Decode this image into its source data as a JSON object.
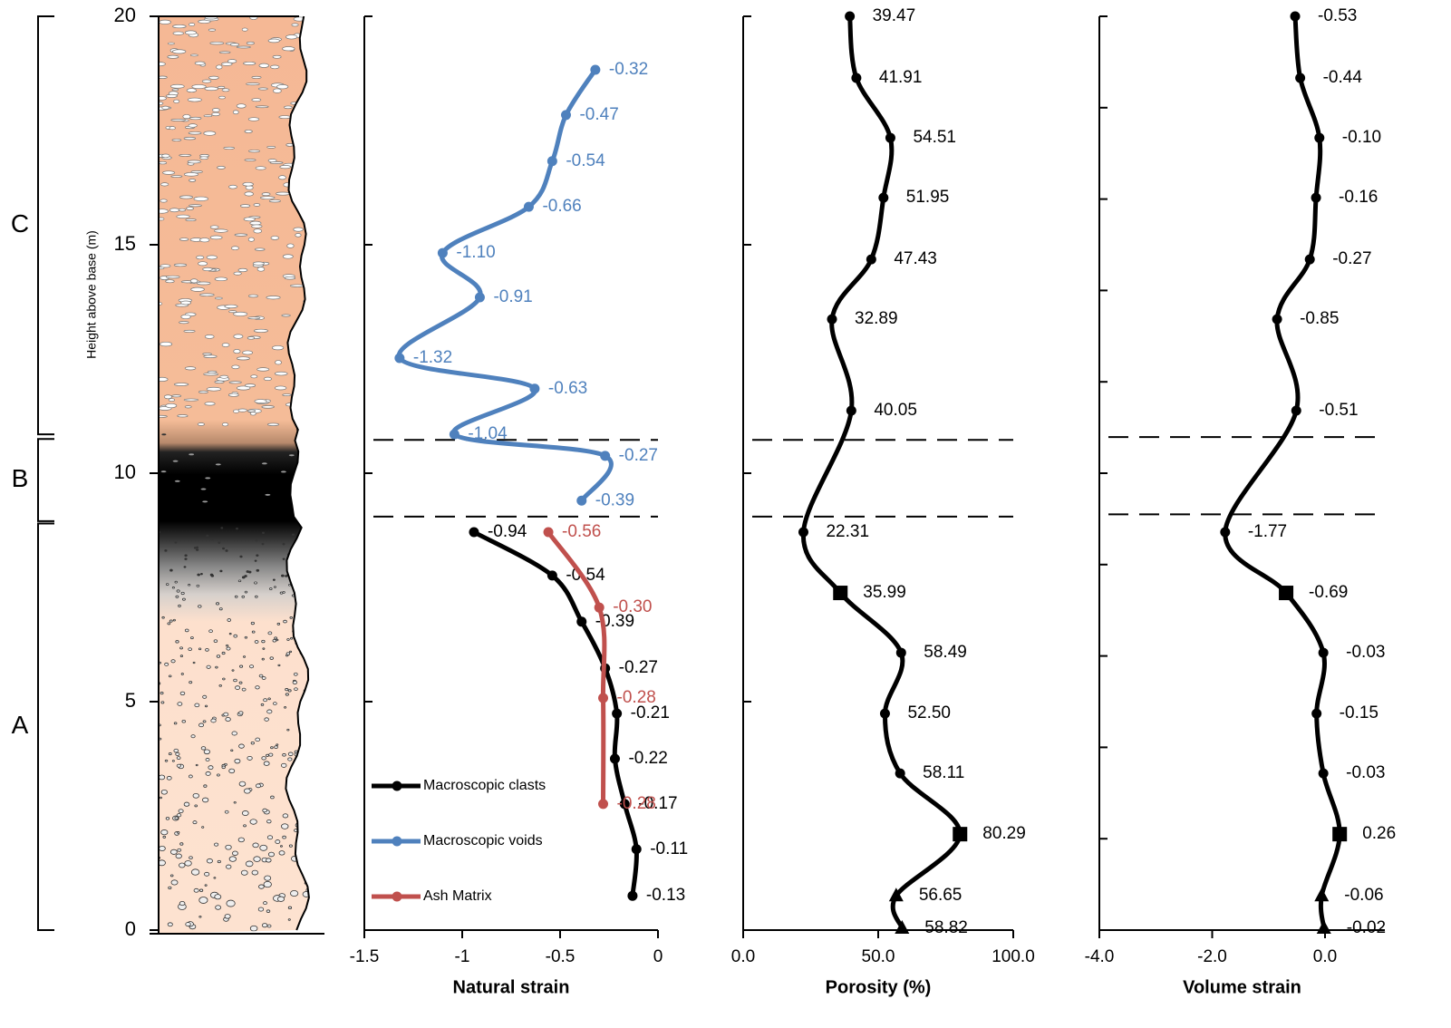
{
  "chart_data": [
    {
      "type": "column",
      "ylabel": "Height above base (m)",
      "ylim": [
        0,
        20
      ],
      "yticks": [
        0,
        5,
        10,
        15,
        20
      ],
      "units": [
        {
          "label": "A",
          "range": [
            0,
            8.9
          ]
        },
        {
          "label": "B",
          "range": [
            8.95,
            10.75
          ]
        },
        {
          "label": "C",
          "range": [
            10.85,
            20
          ]
        }
      ]
    },
    {
      "type": "line",
      "xlabel": "Natural strain",
      "xlim": [
        -1.5,
        0
      ],
      "xticks": [
        -1.5,
        -1,
        -0.5,
        0
      ],
      "ylim": [
        0,
        20
      ],
      "yticks": [
        0,
        5,
        10,
        15,
        20
      ],
      "boundaries": [
        9.05,
        10.73
      ],
      "legend": "lower left",
      "series": [
        {
          "name": "Macroscopic clasts",
          "color": "#000000",
          "y": [
            8.71,
            7.76,
            6.75,
            5.73,
            4.74,
            3.75,
            2.76,
            1.77,
            0.75
          ],
          "values": [
            -0.94,
            -0.54,
            -0.39,
            -0.27,
            -0.21,
            -0.22,
            -0.17,
            -0.11,
            -0.13
          ],
          "value_labels": [
            "-0.94",
            "-0.54",
            "-0.39",
            "-0.27",
            "-0.21",
            "-0.22",
            "-0.17",
            "-0.11",
            "-0.13"
          ]
        },
        {
          "name": "Macroscopic voids",
          "color": "#4f81bd",
          "y": [
            18.83,
            17.84,
            16.83,
            15.83,
            14.82,
            13.85,
            12.52,
            11.85,
            10.85,
            10.38,
            9.4
          ],
          "values": [
            -0.32,
            -0.47,
            -0.54,
            -0.66,
            -1.1,
            -0.91,
            -1.32,
            -0.63,
            -1.04,
            -0.27,
            -0.39
          ],
          "value_labels": [
            "-0.32",
            "-0.47",
            "-0.54",
            "-0.66",
            "-1.10",
            "-0.91",
            "-1.32",
            "-0.63",
            "-1.04",
            "-0.27",
            "-0.39"
          ]
        },
        {
          "name": "Ash Matrix",
          "color": "#c0504d",
          "y": [
            8.71,
            7.06,
            5.08,
            2.76
          ],
          "values": [
            -0.56,
            -0.3,
            -0.28,
            -0.28
          ],
          "value_labels": [
            "-0.56",
            "-0.30",
            "-0.28",
            "-0.28"
          ]
        }
      ]
    },
    {
      "type": "line",
      "xlabel": "Porosity (%)",
      "xlim": [
        0,
        100
      ],
      "xticks": [
        {
          "value": 0,
          "label": "0.0"
        },
        {
          "value": 50,
          "label": "50.0"
        },
        {
          "value": 100,
          "label": "100.0"
        }
      ],
      "ylim": [
        0,
        20
      ],
      "yticks": [
        0,
        5,
        10,
        15,
        20
      ],
      "boundaries": [
        9.05,
        10.73
      ],
      "series": [
        {
          "color": "#000000",
          "y": [
            20.0,
            18.65,
            17.34,
            16.03,
            14.68,
            13.37,
            11.37,
            8.71,
            7.38,
            6.07,
            4.74,
            3.43,
            2.1,
            0.75,
            0.04
          ],
          "values": [
            39.47,
            41.91,
            54.51,
            51.95,
            47.43,
            32.89,
            40.05,
            22.31,
            35.99,
            58.49,
            52.5,
            58.11,
            80.29,
            56.65,
            58.82
          ],
          "value_labels": [
            "39.47",
            "41.91",
            "54.51",
            "51.95",
            "47.43",
            "32.89",
            "40.05",
            "22.31",
            "35.99",
            "58.49",
            "52.50",
            "58.11",
            "80.29",
            "56.65",
            "58.82"
          ],
          "markers": [
            "circle",
            "circle",
            "circle",
            "circle",
            "circle",
            "circle",
            "circle",
            "circle",
            "square",
            "circle",
            "circle",
            "circle",
            "square",
            "triangle",
            "triangle"
          ]
        }
      ]
    },
    {
      "type": "line",
      "xlabel": "Volume strain",
      "xlim": [
        -4,
        1.06
      ],
      "xticks": [
        {
          "value": -4,
          "label": "-4.0"
        },
        {
          "value": -2,
          "label": "-2.0"
        },
        {
          "value": 0,
          "label": "0.0"
        }
      ],
      "ylim": [
        0,
        20
      ],
      "yticks": [
        0,
        2,
        4,
        6,
        8,
        10,
        12,
        14,
        16,
        18,
        20
      ],
      "boundaries": [
        9.1,
        10.79
      ],
      "series": [
        {
          "color": "#000000",
          "y": [
            20.0,
            18.65,
            17.34,
            16.03,
            14.68,
            13.37,
            11.37,
            8.71,
            7.38,
            6.07,
            4.74,
            3.43,
            2.1,
            0.75,
            0.04
          ],
          "values": [
            -0.53,
            -0.44,
            -0.1,
            -0.16,
            -0.27,
            -0.85,
            -0.51,
            -1.77,
            -0.69,
            -0.03,
            -0.15,
            -0.03,
            0.26,
            -0.06,
            -0.02
          ],
          "value_labels": [
            "-0.53",
            "-0.44",
            "-0.10",
            "-0.16",
            "-0.27",
            "-0.85",
            "-0.51",
            "-1.77",
            "-0.69",
            "-0.03",
            "-0.15",
            "-0.03",
            "0.26",
            "-0.06",
            "-0.02"
          ],
          "markers": [
            "circle",
            "circle",
            "circle",
            "circle",
            "circle",
            "circle",
            "circle",
            "circle",
            "square",
            "circle",
            "circle",
            "circle",
            "square",
            "triangle",
            "triangle"
          ]
        }
      ]
    }
  ]
}
